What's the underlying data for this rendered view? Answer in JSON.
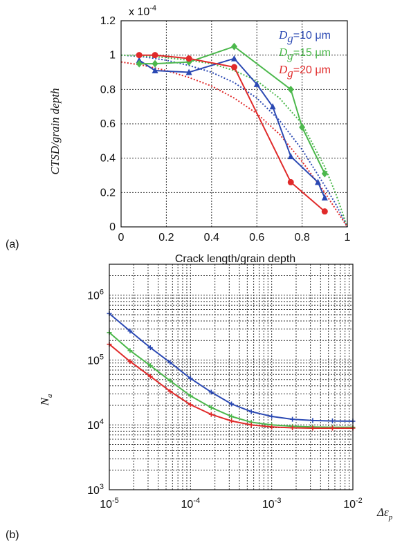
{
  "colors": {
    "blue": "#2b49b3",
    "green": "#4cb84c",
    "red": "#e02a2a",
    "grid": "#333333"
  },
  "chart_data": [
    {
      "panel_label": "(a)",
      "type": "line",
      "xlabel": "Crack length/grain depth",
      "ylabel": "CTSD/grain depth",
      "multiplier": "x 10",
      "multiplier_exp": "-4",
      "xlim": [
        0,
        1
      ],
      "ylim": [
        0,
        1.2
      ],
      "x_ticks": [
        "0",
        "0.2",
        "0.4",
        "0.6",
        "0.8",
        "1"
      ],
      "x_tick_values": [
        0,
        0.2,
        0.4,
        0.6,
        0.8,
        1
      ],
      "y_ticks": [
        "0",
        "0.2",
        "0.4",
        "0.6",
        "0.8",
        "1",
        "1.2"
      ],
      "y_tick_values": [
        0,
        0.2,
        0.4,
        0.6,
        0.8,
        1,
        1.2
      ],
      "grid": true,
      "legend_position": "top-right",
      "legend": [
        {
          "sym": "D",
          "sub": "g",
          "rest": "=10 μm",
          "color": "#2b49b3"
        },
        {
          "sym": "D",
          "sub": "g",
          "rest": "=15 μm",
          "color": "#4cb84c"
        },
        {
          "sym": "D",
          "sub": "g",
          "rest": "=20 μm",
          "color": "#e02a2a"
        }
      ],
      "series": [
        {
          "name": "Dg=10 μm",
          "color": "#2b49b3",
          "marker": "triangle",
          "x": [
            0.08,
            0.15,
            0.3,
            0.5,
            0.6,
            0.67,
            0.75,
            0.87,
            0.9
          ],
          "y": [
            0.97,
            0.91,
            0.9,
            0.98,
            0.83,
            0.7,
            0.41,
            0.26,
            0.17
          ]
        },
        {
          "name": "Dg=15 μm",
          "color": "#4cb84c",
          "marker": "diamond",
          "x": [
            0.08,
            0.15,
            0.3,
            0.5,
            0.75,
            0.8,
            0.9
          ],
          "y": [
            0.95,
            0.95,
            0.96,
            1.05,
            0.8,
            0.58,
            0.31
          ]
        },
        {
          "name": "Dg=20 μm",
          "color": "#e02a2a",
          "marker": "circle",
          "x": [
            0.08,
            0.15,
            0.3,
            0.5,
            0.75,
            0.9
          ],
          "y": [
            1.0,
            1.0,
            0.98,
            0.93,
            0.26,
            0.09
          ]
        }
      ],
      "fits": [
        {
          "color": "#2b49b3",
          "x": [
            0,
            0.1,
            0.2,
            0.3,
            0.4,
            0.5,
            0.6,
            0.7,
            0.8,
            0.9,
            0.95,
            1.0
          ],
          "y": [
            1.0,
            0.99,
            0.97,
            0.94,
            0.9,
            0.84,
            0.75,
            0.62,
            0.45,
            0.24,
            0.13,
            0.0
          ]
        },
        {
          "color": "#4cb84c",
          "x": [
            0,
            0.1,
            0.2,
            0.3,
            0.4,
            0.5,
            0.6,
            0.7,
            0.8,
            0.9,
            0.95,
            1.0
          ],
          "y": [
            1.0,
            0.995,
            0.985,
            0.97,
            0.95,
            0.91,
            0.85,
            0.75,
            0.6,
            0.35,
            0.19,
            0.0
          ]
        },
        {
          "color": "#e02a2a",
          "x": [
            0,
            0.1,
            0.2,
            0.3,
            0.4,
            0.5,
            0.6,
            0.7,
            0.8,
            0.9,
            0.95,
            1.0
          ],
          "y": [
            0.96,
            0.94,
            0.91,
            0.87,
            0.82,
            0.75,
            0.66,
            0.54,
            0.38,
            0.2,
            0.1,
            0.0
          ]
        }
      ]
    },
    {
      "panel_label": "(b)",
      "type": "line",
      "xlabel": "Δε",
      "xlabel_sub": "p",
      "ylabel": "N",
      "ylabel_sub": "a",
      "x_scale": "log",
      "y_scale": "log",
      "xlim": [
        1e-05,
        0.01
      ],
      "ylim": [
        1000.0,
        3000000.0
      ],
      "x_ticks": [
        {
          "base": "10",
          "exp": "-5",
          "value": 1e-05
        },
        {
          "base": "10",
          "exp": "-4",
          "value": 0.0001
        },
        {
          "base": "10",
          "exp": "-3",
          "value": 0.001
        },
        {
          "base": "10",
          "exp": "-2",
          "value": 0.01
        }
      ],
      "y_ticks": [
        {
          "base": "10",
          "exp": "3",
          "value": 1000.0
        },
        {
          "base": "10",
          "exp": "4",
          "value": 10000.0
        },
        {
          "base": "10",
          "exp": "5",
          "value": 100000.0
        },
        {
          "base": "10",
          "exp": "6",
          "value": 1000000.0
        }
      ],
      "grid": true,
      "series": [
        {
          "name": "blue",
          "color": "#2b49b3",
          "x": [
            1e-05,
            1.8e-05,
            3.2e-05,
            5.6e-05,
            0.0001,
            0.00018,
            0.00032,
            0.00056,
            0.001,
            0.0018,
            0.0032,
            0.0056,
            0.01
          ],
          "y": [
            520000,
            280000,
            155000,
            92000,
            52000,
            32000,
            21000,
            16000,
            13500,
            12200,
            11700,
            11500,
            11400
          ]
        },
        {
          "name": "green",
          "color": "#4cb84c",
          "x": [
            1e-05,
            1.8e-05,
            3.2e-05,
            5.6e-05,
            0.0001,
            0.00018,
            0.00032,
            0.00056,
            0.001,
            0.0018,
            0.0032,
            0.0056,
            0.01
          ],
          "y": [
            265000,
            140000,
            82000,
            48000,
            28000,
            18500,
            13500,
            11000,
            10000,
            9500,
            9300,
            9200,
            9200
          ]
        },
        {
          "name": "red",
          "color": "#e02a2a",
          "x": [
            1e-05,
            1.8e-05,
            3.2e-05,
            5.6e-05,
            0.0001,
            0.00018,
            0.00032,
            0.00056,
            0.001,
            0.0018,
            0.0032,
            0.0056,
            0.01
          ],
          "y": [
            175000,
            95000,
            56000,
            33000,
            20500,
            14500,
            11500,
            10000,
            9300,
            9000,
            8900,
            8900,
            8900
          ]
        }
      ]
    }
  ]
}
